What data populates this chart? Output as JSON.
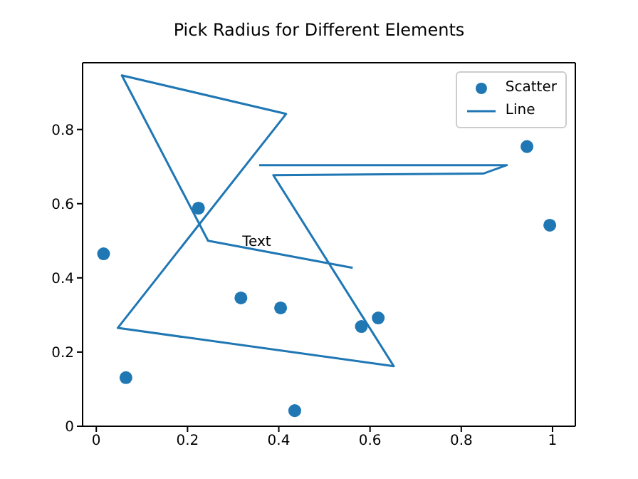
{
  "chart_data": {
    "type": "scatter",
    "title": "Pick Radius for Different Elements",
    "xlim": [
      -0.03,
      1.05
    ],
    "ylim": [
      0,
      0.98
    ],
    "xticks": [
      0,
      0.2,
      0.4,
      0.6,
      0.8,
      1
    ],
    "yticks": [
      0,
      0.2,
      0.4,
      0.6,
      0.8
    ],
    "legend": "top right",
    "marker": "circle",
    "series": [
      {
        "name": "Scatter",
        "color": "#1f77b4",
        "x": [
          0.016,
          0.065,
          0.224,
          0.317,
          0.404,
          0.435,
          0.581,
          0.618,
          0.944,
          0.994
        ],
        "values": [
          0.465,
          0.131,
          0.588,
          0.346,
          0.319,
          0.042,
          0.269,
          0.292,
          0.754,
          0.542
        ]
      },
      {
        "name": "Line",
        "type": "line",
        "color": "#1f77b4",
        "marker": "none",
        "line_style": "solid",
        "x": [
          0.357,
          0.9,
          0.848,
          0.388,
          0.652,
          0.047,
          0.416,
          0.056,
          0.245,
          0.562
        ],
        "values": [
          0.704,
          0.704,
          0.681,
          0.677,
          0.162,
          0.265,
          0.842,
          0.946,
          0.5,
          0.427
        ]
      }
    ],
    "annotations": [
      {
        "text": "Text",
        "x": 0.32,
        "y": 0.5
      }
    ]
  }
}
